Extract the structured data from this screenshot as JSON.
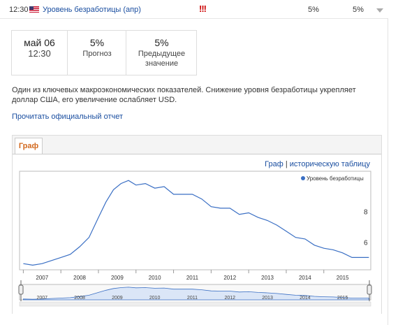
{
  "event_row": {
    "time": "12:30",
    "event_name": "Уровень безработицы (апр)",
    "importance": "!!!",
    "forecast": "5%",
    "previous": "5%"
  },
  "stats": {
    "date": "май 06",
    "time": "12:30",
    "forecast_value": "5%",
    "forecast_label": "Прогноз",
    "previous_value": "5%",
    "previous_label_1": "Предыдущее",
    "previous_label_2": "значение"
  },
  "description": "Один из ключевых макроэкономических показателей. Снижение уровня безработицы укрепляет доллар США, его увеличение ослабляет USD.",
  "report_link": "Прочитать официальный отчет",
  "tabs": {
    "graph": "Граф"
  },
  "chart_links": {
    "graph": "Граф",
    "separator": "|",
    "table": "историческую таблицу"
  },
  "colors": {
    "line": "#3a6fc4",
    "accent": "#d2691e",
    "link": "#1a4ea0",
    "importance": "#cc0000"
  },
  "chart_data": {
    "type": "line",
    "legend": "Уровень безработицы",
    "legend_position": "top-right",
    "x_ticks": [
      "2007",
      "2008",
      "2009",
      "2010",
      "2011",
      "2012",
      "2013",
      "2014",
      "2015"
    ],
    "y_ticks": [
      6,
      8
    ],
    "ylim": [
      4.2,
      10.6
    ],
    "xlim": [
      2006.9,
      2016.25
    ],
    "x": [
      2007.0,
      2007.25,
      2007.5,
      2007.75,
      2008.0,
      2008.25,
      2008.5,
      2008.75,
      2009.0,
      2009.2,
      2009.4,
      2009.6,
      2009.8,
      2010.0,
      2010.25,
      2010.5,
      2010.75,
      2011.0,
      2011.25,
      2011.5,
      2011.75,
      2012.0,
      2012.25,
      2012.5,
      2012.75,
      2013.0,
      2013.25,
      2013.5,
      2013.75,
      2014.0,
      2014.25,
      2014.5,
      2014.75,
      2015.0,
      2015.25,
      2015.5,
      2015.75,
      2016.0,
      2016.2
    ],
    "y": [
      4.6,
      4.5,
      4.6,
      4.8,
      5.0,
      5.2,
      5.7,
      6.3,
      7.6,
      8.6,
      9.4,
      9.8,
      10.0,
      9.7,
      9.8,
      9.5,
      9.6,
      9.1,
      9.1,
      9.1,
      8.8,
      8.3,
      8.2,
      8.2,
      7.8,
      7.9,
      7.6,
      7.4,
      7.1,
      6.7,
      6.3,
      6.2,
      5.8,
      5.6,
      5.5,
      5.3,
      5.0,
      5.0,
      5.0
    ]
  },
  "navigator": {
    "x_ticks": [
      "2007",
      "2008",
      "2009",
      "2010",
      "2011",
      "2012",
      "2013",
      "2014",
      "2015"
    ]
  }
}
